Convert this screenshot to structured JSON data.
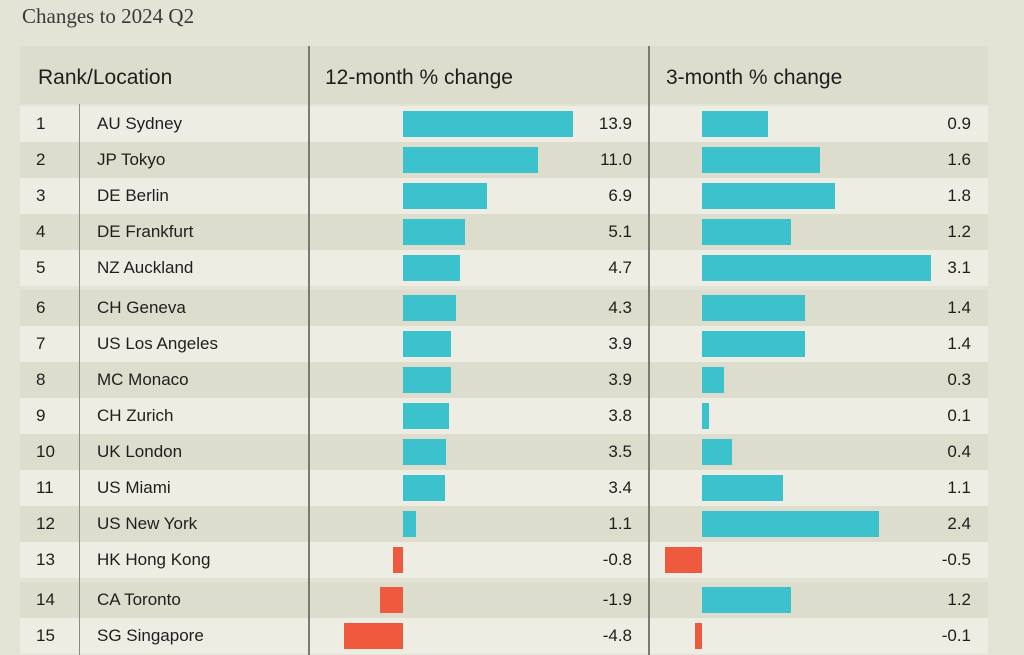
{
  "title": "Changes to 2024 Q2",
  "headers": {
    "rank_location": "Rank/Location",
    "col1": "12-month % change",
    "col2": "3-month % change"
  },
  "colors": {
    "positive": "#3cc2cc",
    "negative": "#ef5a3f"
  },
  "chart_data": {
    "type": "bar",
    "title": "Changes to 2024 Q2",
    "categories": [
      "AU Sydney",
      "JP Tokyo",
      "DE Berlin",
      "DE Frankfurt",
      "NZ Auckland",
      "CH Geneva",
      "US Los Angeles",
      "MC Monaco",
      "CH Zurich",
      "UK London",
      "US Miami",
      "US New York",
      "HK Hong Kong",
      "CA Toronto",
      "SG Singapore"
    ],
    "ranks": [
      "1",
      "2",
      "3",
      "4",
      "5",
      "6",
      "7",
      "8",
      "9",
      "10",
      "11",
      "12",
      "13",
      "14",
      "15"
    ],
    "series": [
      {
        "name": "12-month % change",
        "values": [
          13.9,
          11.0,
          6.9,
          5.1,
          4.7,
          4.3,
          3.9,
          3.9,
          3.8,
          3.5,
          3.4,
          1.1,
          -0.8,
          -1.9,
          -4.8
        ],
        "labels": [
          "13.9",
          "11.0",
          "6.9",
          "5.1",
          "4.7",
          "4.3",
          "3.9",
          "3.9",
          "3.8",
          "3.5",
          "3.4",
          "1.1",
          "-0.8",
          "-1.9",
          "-4.8"
        ]
      },
      {
        "name": "3-month % change",
        "values": [
          0.9,
          1.6,
          1.8,
          1.2,
          3.1,
          1.4,
          1.4,
          0.3,
          0.1,
          0.4,
          1.1,
          2.4,
          -0.5,
          1.2,
          -0.1
        ],
        "labels": [
          "0.9",
          "1.6",
          "1.8",
          "1.2",
          "3.1",
          "1.4",
          "1.4",
          "0.3",
          "0.1",
          "0.4",
          "1.1",
          "2.4",
          "-0.5",
          "1.2",
          "-0.1"
        ]
      }
    ]
  }
}
